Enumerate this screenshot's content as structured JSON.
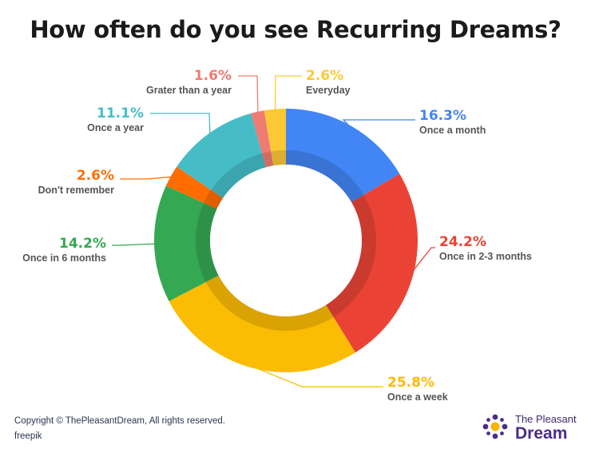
{
  "chart_data": {
    "type": "pie",
    "title": "How often do you see Recurring Dreams?",
    "slices": [
      {
        "label": "Once a month",
        "display": "16.3%",
        "value": 16.3,
        "color": "#4285f4"
      },
      {
        "label": "Once in 2-3 months",
        "display": "24.2%",
        "value": 24.2,
        "color": "#ea4335"
      },
      {
        "label": "Once a week",
        "display": "25.8%",
        "value": 25.8,
        "color": "#fbbc04"
      },
      {
        "label": "Once in 6 months",
        "display": "14.2%",
        "value": 14.2,
        "color": "#34a853"
      },
      {
        "label": "Don't remember",
        "display": "2.6%",
        "value": 2.6,
        "color": "#ff6d01"
      },
      {
        "label": "Once a year",
        "display": "11.1%",
        "value": 11.1,
        "color": "#46bdc6"
      },
      {
        "label": "Grater than a year",
        "display": "1.6%",
        "value": 1.6,
        "color": "#f07b72"
      },
      {
        "label": "Everyday",
        "display": "2.6%",
        "value": 2.6,
        "color": "#fcc934"
      }
    ]
  },
  "footer": {
    "copyright": "Copyright © ThePleasantDream, All rights reserved.",
    "credit": "freepik"
  },
  "brand": {
    "line1": "The Pleasant",
    "line2": "Dream",
    "logo_color": "#4b2d88",
    "logo_accent": "#f6b400"
  }
}
